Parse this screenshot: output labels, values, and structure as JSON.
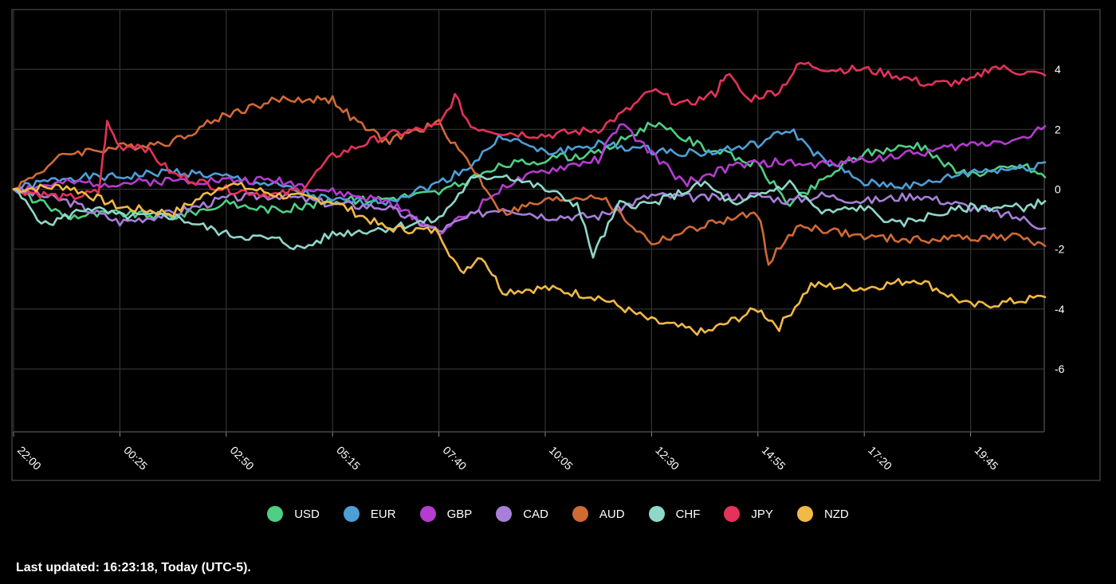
{
  "chart_data": {
    "type": "line",
    "title": "",
    "xlabel": "",
    "ylabel": "",
    "ylim": [
      -7.5,
      5.5
    ],
    "yticks": [
      4,
      2,
      0,
      -2,
      -4,
      -6
    ],
    "grid": true,
    "legend_placement": "bottom",
    "x_tick_labels": [
      "22:00",
      "00:25",
      "02:50",
      "05:15",
      "07:40",
      "10:05",
      "12:30",
      "14:55",
      "17:20",
      "19:45"
    ],
    "x_step_minutes": 145,
    "x_end_index": 9.7,
    "series": [
      {
        "name": "USD",
        "color": "#4ecf84",
        "points": [
          [
            0,
            0
          ],
          [
            0.5,
            -0.9
          ],
          [
            1,
            -0.8
          ],
          [
            1.5,
            -0.9
          ],
          [
            2,
            -0.5
          ],
          [
            2.5,
            -0.7
          ],
          [
            3,
            -0.4
          ],
          [
            3.5,
            -0.3
          ],
          [
            4,
            -0.1
          ],
          [
            4.3,
            0.3
          ],
          [
            4.6,
            0.8
          ],
          [
            5,
            1.0
          ],
          [
            5.5,
            1.2
          ],
          [
            6,
            2.2
          ],
          [
            6.5,
            1.4
          ],
          [
            7,
            0.8
          ],
          [
            7.3,
            -0.5
          ],
          [
            7.5,
            0.0
          ],
          [
            7.8,
            0.8
          ],
          [
            8,
            1.2
          ],
          [
            8.5,
            1.5
          ],
          [
            8.9,
            0.5
          ],
          [
            9.2,
            0.6
          ],
          [
            9.5,
            0.8
          ],
          [
            9.7,
            0.4
          ]
        ]
      },
      {
        "name": "EUR",
        "color": "#4d9fd6",
        "points": [
          [
            0,
            0
          ],
          [
            0.5,
            0.4
          ],
          [
            1,
            0.4
          ],
          [
            1.5,
            0.6
          ],
          [
            2,
            0.4
          ],
          [
            2.5,
            0.1
          ],
          [
            3,
            -0.4
          ],
          [
            3.5,
            -0.4
          ],
          [
            4,
            0.2
          ],
          [
            4.3,
            0.8
          ],
          [
            4.6,
            1.8
          ],
          [
            5,
            1.2
          ],
          [
            5.5,
            1.5
          ],
          [
            6,
            1.3
          ],
          [
            6.5,
            1.2
          ],
          [
            7,
            1.5
          ],
          [
            7.3,
            2.0
          ],
          [
            7.6,
            1.0
          ],
          [
            8,
            0.2
          ],
          [
            8.5,
            0.1
          ],
          [
            9,
            0.6
          ],
          [
            9.5,
            0.7
          ],
          [
            9.7,
            0.9
          ]
        ]
      },
      {
        "name": "GBP",
        "color": "#b43ccf",
        "points": [
          [
            0,
            0
          ],
          [
            0.5,
            0.2
          ],
          [
            1,
            0.2
          ],
          [
            1.5,
            0.3
          ],
          [
            2,
            0.3
          ],
          [
            2.5,
            0.3
          ],
          [
            3,
            -0.1
          ],
          [
            3.5,
            -0.4
          ],
          [
            4,
            -1.4
          ],
          [
            4.3,
            -0.8
          ],
          [
            4.6,
            0.1
          ],
          [
            5,
            0.6
          ],
          [
            5.5,
            1.0
          ],
          [
            5.7,
            2.2
          ],
          [
            6,
            1.2
          ],
          [
            6.3,
            0.2
          ],
          [
            6.8,
            0.8
          ],
          [
            7.2,
            0.9
          ],
          [
            7.5,
            0.8
          ],
          [
            8,
            1.0
          ],
          [
            8.5,
            1.2
          ],
          [
            9,
            1.5
          ],
          [
            9.5,
            1.7
          ],
          [
            9.7,
            2.1
          ]
        ]
      },
      {
        "name": "CAD",
        "color": "#a77fd8",
        "points": [
          [
            0,
            0
          ],
          [
            0.5,
            -0.4
          ],
          [
            1,
            -1.1
          ],
          [
            1.5,
            -0.8
          ],
          [
            2,
            -0.3
          ],
          [
            2.5,
            -0.2
          ],
          [
            3,
            -0.5
          ],
          [
            3.5,
            -0.6
          ],
          [
            4,
            -1.4
          ],
          [
            4.3,
            -0.9
          ],
          [
            4.6,
            -0.6
          ],
          [
            5,
            -0.9
          ],
          [
            5.5,
            -0.9
          ],
          [
            6,
            -0.2
          ],
          [
            6.5,
            -0.3
          ],
          [
            7,
            -0.2
          ],
          [
            7.3,
            -0.4
          ],
          [
            7.6,
            -0.2
          ],
          [
            8,
            -0.4
          ],
          [
            8.5,
            -0.2
          ],
          [
            9,
            -0.6
          ],
          [
            9.5,
            -1.0
          ],
          [
            9.7,
            -1.3
          ]
        ]
      },
      {
        "name": "AUD",
        "color": "#d06a35",
        "points": [
          [
            0,
            0
          ],
          [
            0.5,
            1.2
          ],
          [
            1,
            1.4
          ],
          [
            1.5,
            1.6
          ],
          [
            2,
            2.5
          ],
          [
            2.5,
            3.0
          ],
          [
            3,
            3.0
          ],
          [
            3.2,
            2.3
          ],
          [
            3.5,
            1.6
          ],
          [
            4,
            2.2
          ],
          [
            4.3,
            0.8
          ],
          [
            4.6,
            -0.8
          ],
          [
            5,
            -0.4
          ],
          [
            5.5,
            -0.2
          ],
          [
            6,
            -1.8
          ],
          [
            6.5,
            -1.2
          ],
          [
            7,
            -0.8
          ],
          [
            7.1,
            -2.4
          ],
          [
            7.4,
            -1.2
          ],
          [
            8,
            -1.6
          ],
          [
            8.5,
            -1.7
          ],
          [
            9,
            -1.6
          ],
          [
            9.5,
            -1.6
          ],
          [
            9.7,
            -1.9
          ]
        ]
      },
      {
        "name": "CHF",
        "color": "#8fd7c9",
        "points": [
          [
            0,
            0
          ],
          [
            0.3,
            -1.2
          ],
          [
            0.7,
            -0.6
          ],
          [
            1,
            -0.9
          ],
          [
            1.5,
            -0.9
          ],
          [
            2,
            -1.5
          ],
          [
            2.5,
            -1.7
          ],
          [
            2.7,
            -2.0
          ],
          [
            3,
            -1.5
          ],
          [
            3.5,
            -1.3
          ],
          [
            4,
            -1.0
          ],
          [
            4.3,
            0.3
          ],
          [
            4.6,
            0.5
          ],
          [
            5,
            0.0
          ],
          [
            5.3,
            -0.5
          ],
          [
            5.45,
            -2.2
          ],
          [
            5.7,
            -0.5
          ],
          [
            6,
            -0.5
          ],
          [
            6.5,
            0.2
          ],
          [
            6.8,
            -0.6
          ],
          [
            7,
            -0.2
          ],
          [
            7.3,
            0.2
          ],
          [
            7.6,
            -0.8
          ],
          [
            8,
            -0.6
          ],
          [
            8.3,
            -1.2
          ],
          [
            8.6,
            -0.9
          ],
          [
            9,
            -0.6
          ],
          [
            9.5,
            -0.6
          ],
          [
            9.7,
            -0.4
          ]
        ]
      },
      {
        "name": "JPY",
        "color": "#e5325a",
        "points": [
          [
            0,
            0
          ],
          [
            0.5,
            -0.3
          ],
          [
            0.8,
            -0.1
          ],
          [
            0.88,
            2.2
          ],
          [
            1,
            1.4
          ],
          [
            1.2,
            1.5
          ],
          [
            1.5,
            0.5
          ],
          [
            2,
            0.0
          ],
          [
            2.5,
            -0.2
          ],
          [
            2.7,
            0.0
          ],
          [
            3,
            1.1
          ],
          [
            3.5,
            1.8
          ],
          [
            4,
            2.1
          ],
          [
            4.15,
            3.1
          ],
          [
            4.3,
            2.1
          ],
          [
            4.6,
            1.9
          ],
          [
            5,
            1.8
          ],
          [
            5.5,
            2.0
          ],
          [
            5.8,
            2.7
          ],
          [
            6,
            3.3
          ],
          [
            6.3,
            2.8
          ],
          [
            6.6,
            3.2
          ],
          [
            6.7,
            3.9
          ],
          [
            6.9,
            3.0
          ],
          [
            7.2,
            3.3
          ],
          [
            7.4,
            4.2
          ],
          [
            7.7,
            4.0
          ],
          [
            8,
            4.0
          ],
          [
            8.3,
            3.8
          ],
          [
            8.6,
            3.5
          ],
          [
            9,
            3.6
          ],
          [
            9.2,
            4.1
          ],
          [
            9.5,
            3.9
          ],
          [
            9.7,
            3.8
          ]
        ]
      },
      {
        "name": "NZD",
        "color": "#f1b945",
        "points": [
          [
            0,
            0
          ],
          [
            0.5,
            0.1
          ],
          [
            1,
            -0.6
          ],
          [
            1.5,
            -0.8
          ],
          [
            2,
            0.2
          ],
          [
            2.5,
            -0.2
          ],
          [
            3,
            -0.4
          ],
          [
            3.5,
            -1.3
          ],
          [
            4,
            -1.4
          ],
          [
            4.2,
            -2.8
          ],
          [
            4.4,
            -2.2
          ],
          [
            4.6,
            -3.4
          ],
          [
            5,
            -3.3
          ],
          [
            5.5,
            -3.6
          ],
          [
            6,
            -4.4
          ],
          [
            6.5,
            -4.8
          ],
          [
            7,
            -4.0
          ],
          [
            7.2,
            -4.6
          ],
          [
            7.5,
            -3.2
          ],
          [
            8,
            -3.3
          ],
          [
            8.5,
            -3.0
          ],
          [
            9,
            -3.9
          ],
          [
            9.3,
            -3.8
          ],
          [
            9.7,
            -3.6
          ]
        ]
      }
    ]
  },
  "legend": [
    {
      "label": "USD",
      "color": "#4ecf84"
    },
    {
      "label": "EUR",
      "color": "#4d9fd6"
    },
    {
      "label": "GBP",
      "color": "#b43ccf"
    },
    {
      "label": "CAD",
      "color": "#a77fd8"
    },
    {
      "label": "AUD",
      "color": "#d06a35"
    },
    {
      "label": "CHF",
      "color": "#8fd7c9"
    },
    {
      "label": "JPY",
      "color": "#e5325a"
    },
    {
      "label": "NZD",
      "color": "#f1b945"
    }
  ],
  "footer": {
    "last_updated": "Last updated: 16:23:18, Today (UTC-5)."
  }
}
